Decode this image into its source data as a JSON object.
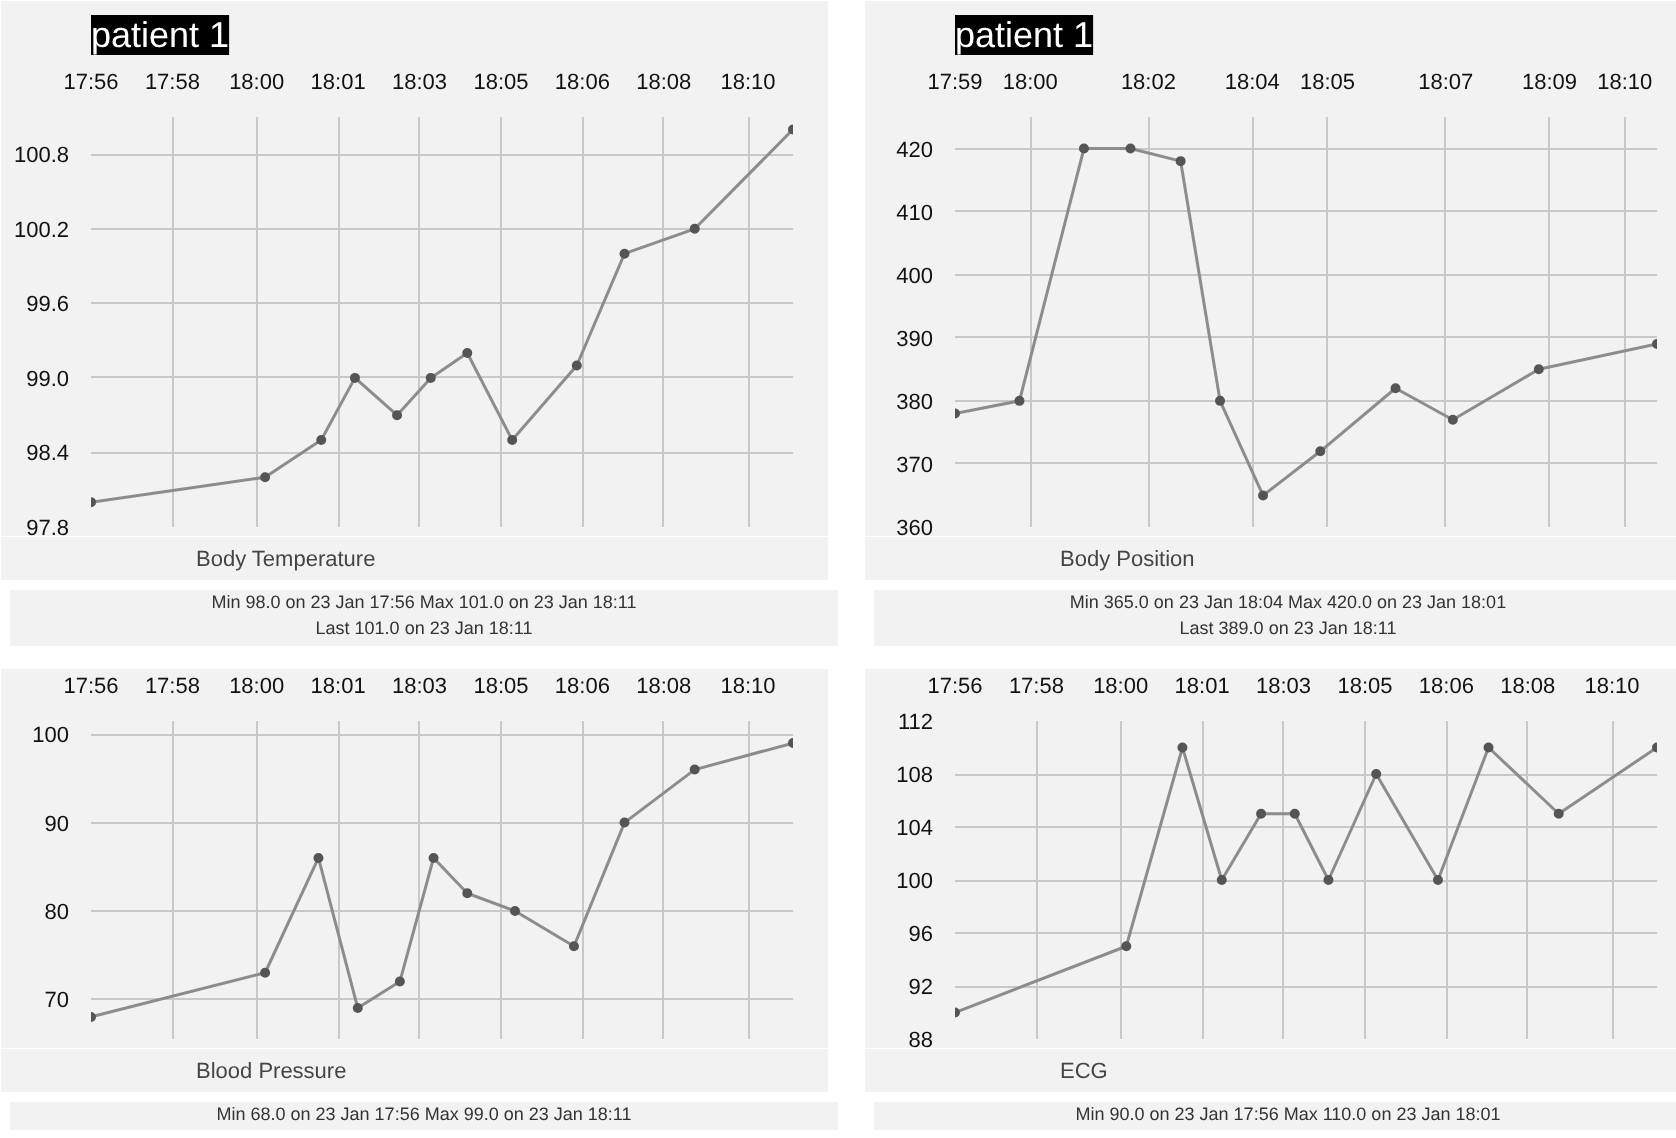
{
  "chart_data": [
    {
      "type": "line",
      "title": "patient 1",
      "grid": true,
      "legend": "bottom",
      "marker": "circle",
      "x": [
        17.933,
        17.995,
        18.015,
        18.027,
        18.042,
        18.054,
        18.067,
        18.083,
        18.106,
        18.123,
        18.148,
        18.183
      ],
      "series": [
        {
          "name": "Body Temperature",
          "color": "#8c8c8c",
          "values": [
            98.0,
            98.2,
            98.5,
            99.0,
            98.7,
            99.0,
            99.2,
            98.5,
            99.1,
            100.0,
            100.2,
            101.0
          ]
        }
      ],
      "xlim": [
        17.933,
        18.183
      ],
      "ylim": [
        97.8,
        101.1
      ],
      "xticks": [
        {
          "value": 17.933,
          "label": "17:56"
        },
        {
          "value": 17.962,
          "label": "17:58"
        },
        {
          "value": 17.992,
          "label": "18:00"
        },
        {
          "value": 18.021,
          "label": "18:01"
        },
        {
          "value": 18.05,
          "label": "18:03"
        },
        {
          "value": 18.079,
          "label": "18:05"
        },
        {
          "value": 18.108,
          "label": "18:06"
        },
        {
          "value": 18.137,
          "label": "18:08"
        },
        {
          "value": 18.167,
          "label": "18:10"
        }
      ],
      "yticks": [
        97.8,
        98.4,
        {
          "value": 99,
          "label": "99.0"
        },
        99.6,
        100.2,
        100.8
      ],
      "annotations": [
        "Min  98.0 on 23 Jan 17:56    Max  101.0 on 23 Jan 18:11",
        "Last  101.0 on 23 Jan 18:11"
      ]
    },
    {
      "type": "line",
      "title": "patient 1",
      "grid": true,
      "legend": "bottom",
      "marker": "circle",
      "x": [
        17.987,
        18.005,
        18.023,
        18.036,
        18.05,
        18.061,
        18.073,
        18.089,
        18.11,
        18.126,
        18.15,
        18.183
      ],
      "series": [
        {
          "name": "Body Position",
          "color": "#8c8c8c",
          "values": [
            378,
            380,
            420,
            420,
            418,
            380,
            365,
            372,
            382,
            377,
            385,
            389
          ]
        }
      ],
      "xlim": [
        17.987,
        18.183
      ],
      "ylim": [
        360,
        425
      ],
      "xticks": [
        {
          "value": 17.987,
          "label": "17:59"
        },
        {
          "value": 18.008,
          "label": "18:00"
        },
        {
          "value": 18.041,
          "label": "18:02"
        },
        {
          "value": 18.07,
          "label": "18:04"
        },
        {
          "value": 18.091,
          "label": "18:05"
        },
        {
          "value": 18.124,
          "label": "18:07"
        },
        {
          "value": 18.153,
          "label": "18:09"
        },
        {
          "value": 18.174,
          "label": "18:10"
        }
      ],
      "yticks": [
        360,
        370,
        380,
        390,
        400,
        410,
        420
      ],
      "annotations": [
        "Min  365.0 on 23 Jan 18:04    Max  420.0 on 23 Jan 18:01",
        "Last  389.0 on 23 Jan 18:11"
      ]
    },
    {
      "type": "line",
      "grid": true,
      "legend": "bottom",
      "marker": "circle",
      "x": [
        17.933,
        17.995,
        18.014,
        18.028,
        18.043,
        18.055,
        18.067,
        18.084,
        18.105,
        18.123,
        18.148,
        18.183
      ],
      "series": [
        {
          "name": "Blood Pressure",
          "color": "#8c8c8c",
          "values": [
            68,
            73,
            86,
            69,
            72,
            86,
            82,
            80,
            76,
            90,
            96,
            99
          ]
        }
      ],
      "xlim": [
        17.933,
        18.183
      ],
      "ylim": [
        65.5,
        101.5
      ],
      "xticks": [
        {
          "value": 17.933,
          "label": "17:56"
        },
        {
          "value": 17.962,
          "label": "17:58"
        },
        {
          "value": 17.992,
          "label": "18:00"
        },
        {
          "value": 18.021,
          "label": "18:01"
        },
        {
          "value": 18.05,
          "label": "18:03"
        },
        {
          "value": 18.079,
          "label": "18:05"
        },
        {
          "value": 18.108,
          "label": "18:06"
        },
        {
          "value": 18.137,
          "label": "18:08"
        },
        {
          "value": 18.167,
          "label": "18:10"
        }
      ],
      "yticks": [
        70,
        80,
        90,
        100
      ],
      "annotations": [
        "Min  68.0 on 23 Jan 17:56    Max  99.0 on 23 Jan 18:11"
      ]
    },
    {
      "type": "line",
      "grid": true,
      "legend": "bottom",
      "marker": "circle",
      "x": [
        17.933,
        17.994,
        18.014,
        18.028,
        18.042,
        18.054,
        18.066,
        18.083,
        18.105,
        18.123,
        18.148,
        18.183
      ],
      "series": [
        {
          "name": "ECG",
          "color": "#8c8c8c",
          "values": [
            90,
            95,
            110,
            100,
            105,
            105,
            100,
            108,
            100,
            110,
            105,
            110
          ]
        }
      ],
      "xlim": [
        17.933,
        18.183
      ],
      "ylim": [
        88,
        112
      ],
      "xticks": [
        {
          "value": 17.933,
          "label": "17:56"
        },
        {
          "value": 17.962,
          "label": "17:58"
        },
        {
          "value": 17.992,
          "label": "18:00"
        },
        {
          "value": 18.021,
          "label": "18:01"
        },
        {
          "value": 18.05,
          "label": "18:03"
        },
        {
          "value": 18.079,
          "label": "18:05"
        },
        {
          "value": 18.108,
          "label": "18:06"
        },
        {
          "value": 18.137,
          "label": "18:08"
        },
        {
          "value": 18.167,
          "label": "18:10"
        }
      ],
      "yticks": [
        88,
        92,
        96,
        100,
        104,
        108,
        112
      ],
      "annotations": [
        "Min  90.0 on 23 Jan 17:56    Max  110.0 on 23 Jan 18:01"
      ]
    }
  ]
}
